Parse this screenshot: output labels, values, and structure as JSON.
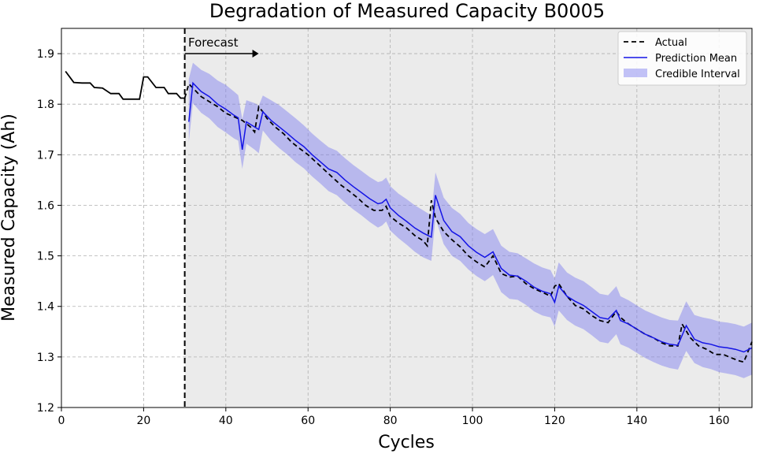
{
  "chart_data": {
    "type": "line",
    "title": "Degradation of Measured Capacity B0005",
    "xlabel": "Cycles",
    "ylabel": "Measured Capacity (Ah)",
    "xlim": [
      0,
      168
    ],
    "ylim": [
      1.2,
      1.95
    ],
    "xticks": [
      0,
      20,
      40,
      60,
      80,
      100,
      120,
      140,
      160
    ],
    "yticks": [
      1.2,
      1.3,
      1.4,
      1.5,
      1.6,
      1.7,
      1.8,
      1.9
    ],
    "grid": true,
    "legend_position": "top-right",
    "forecast_start": 30,
    "forecast_shaded_region": [
      30,
      168
    ],
    "annotation": {
      "text": "Forecast",
      "arrow_from": 30,
      "arrow_to": 48
    },
    "colors": {
      "actual": "#000000",
      "prediction": "#1414e6",
      "interval": "#7b7bf0",
      "forecast_bg": "#ebebeb"
    },
    "legend": [
      "Actual",
      "Prediction Mean",
      "Credible Interval"
    ],
    "series": [
      {
        "name": "Actual",
        "style": "dashed after forecast start, solid before",
        "points": [
          [
            1,
            1.865
          ],
          [
            3,
            1.843
          ],
          [
            5,
            1.842
          ],
          [
            7,
            1.842
          ],
          [
            8,
            1.833
          ],
          [
            10,
            1.832
          ],
          [
            12,
            1.821
          ],
          [
            14,
            1.821
          ],
          [
            15,
            1.81
          ],
          [
            17,
            1.81
          ],
          [
            19,
            1.81
          ],
          [
            20,
            1.854
          ],
          [
            21,
            1.854
          ],
          [
            23,
            1.833
          ],
          [
            25,
            1.833
          ],
          [
            26,
            1.821
          ],
          [
            28,
            1.821
          ],
          [
            29,
            1.812
          ],
          [
            30,
            1.812
          ],
          [
            31,
            1.84
          ],
          [
            32,
            1.832
          ],
          [
            34,
            1.815
          ],
          [
            36,
            1.805
          ],
          [
            38,
            1.795
          ],
          [
            40,
            1.782
          ],
          [
            42,
            1.775
          ],
          [
            44,
            1.768
          ],
          [
            46,
            1.755
          ],
          [
            47,
            1.745
          ],
          [
            48,
            1.795
          ],
          [
            49,
            1.785
          ],
          [
            50,
            1.772
          ],
          [
            52,
            1.755
          ],
          [
            54,
            1.742
          ],
          [
            56,
            1.725
          ],
          [
            58,
            1.712
          ],
          [
            60,
            1.7
          ],
          [
            62,
            1.685
          ],
          [
            64,
            1.67
          ],
          [
            66,
            1.655
          ],
          [
            68,
            1.64
          ],
          [
            70,
            1.628
          ],
          [
            72,
            1.615
          ],
          [
            74,
            1.6
          ],
          [
            76,
            1.59
          ],
          [
            78,
            1.59
          ],
          [
            79,
            1.598
          ],
          [
            80,
            1.578
          ],
          [
            82,
            1.565
          ],
          [
            84,
            1.555
          ],
          [
            86,
            1.54
          ],
          [
            88,
            1.53
          ],
          [
            89,
            1.52
          ],
          [
            90,
            1.61
          ],
          [
            91,
            1.575
          ],
          [
            93,
            1.548
          ],
          [
            95,
            1.532
          ],
          [
            97,
            1.518
          ],
          [
            99,
            1.5
          ],
          [
            101,
            1.488
          ],
          [
            103,
            1.478
          ],
          [
            105,
            1.5
          ],
          [
            107,
            1.465
          ],
          [
            109,
            1.458
          ],
          [
            111,
            1.46
          ],
          [
            113,
            1.445
          ],
          [
            115,
            1.435
          ],
          [
            117,
            1.428
          ],
          [
            119,
            1.42
          ],
          [
            120,
            1.44
          ],
          [
            121,
            1.445
          ],
          [
            123,
            1.42
          ],
          [
            125,
            1.402
          ],
          [
            127,
            1.395
          ],
          [
            129,
            1.382
          ],
          [
            131,
            1.372
          ],
          [
            133,
            1.368
          ],
          [
            135,
            1.39
          ],
          [
            136,
            1.378
          ],
          [
            138,
            1.365
          ],
          [
            140,
            1.355
          ],
          [
            142,
            1.345
          ],
          [
            144,
            1.338
          ],
          [
            146,
            1.328
          ],
          [
            148,
            1.322
          ],
          [
            150,
            1.322
          ],
          [
            151,
            1.365
          ],
          [
            153,
            1.338
          ],
          [
            155,
            1.322
          ],
          [
            157,
            1.315
          ],
          [
            159,
            1.305
          ],
          [
            161,
            1.305
          ],
          [
            163,
            1.298
          ],
          [
            165,
            1.292
          ],
          [
            166,
            1.29
          ],
          [
            168,
            1.33
          ]
        ]
      },
      {
        "name": "Prediction Mean",
        "points": [
          [
            31,
            1.765
          ],
          [
            32,
            1.842
          ],
          [
            34,
            1.825
          ],
          [
            36,
            1.815
          ],
          [
            38,
            1.8
          ],
          [
            40,
            1.79
          ],
          [
            42,
            1.778
          ],
          [
            43,
            1.773
          ],
          [
            44,
            1.71
          ],
          [
            45,
            1.765
          ],
          [
            47,
            1.755
          ],
          [
            48,
            1.75
          ],
          [
            49,
            1.785
          ],
          [
            51,
            1.768
          ],
          [
            53,
            1.755
          ],
          [
            55,
            1.742
          ],
          [
            57,
            1.728
          ],
          [
            59,
            1.716
          ],
          [
            61,
            1.7
          ],
          [
            63,
            1.686
          ],
          [
            65,
            1.672
          ],
          [
            67,
            1.665
          ],
          [
            69,
            1.65
          ],
          [
            71,
            1.637
          ],
          [
            73,
            1.625
          ],
          [
            75,
            1.613
          ],
          [
            77,
            1.603
          ],
          [
            78,
            1.605
          ],
          [
            79,
            1.612
          ],
          [
            80,
            1.595
          ],
          [
            82,
            1.58
          ],
          [
            84,
            1.568
          ],
          [
            86,
            1.555
          ],
          [
            88,
            1.545
          ],
          [
            90,
            1.537
          ],
          [
            91,
            1.62
          ],
          [
            93,
            1.57
          ],
          [
            95,
            1.548
          ],
          [
            97,
            1.538
          ],
          [
            99,
            1.52
          ],
          [
            101,
            1.507
          ],
          [
            103,
            1.497
          ],
          [
            105,
            1.508
          ],
          [
            107,
            1.475
          ],
          [
            109,
            1.462
          ],
          [
            111,
            1.46
          ],
          [
            113,
            1.45
          ],
          [
            115,
            1.438
          ],
          [
            117,
            1.43
          ],
          [
            119,
            1.425
          ],
          [
            120,
            1.408
          ],
          [
            121,
            1.44
          ],
          [
            123,
            1.42
          ],
          [
            125,
            1.41
          ],
          [
            127,
            1.402
          ],
          [
            129,
            1.39
          ],
          [
            131,
            1.378
          ],
          [
            133,
            1.375
          ],
          [
            135,
            1.392
          ],
          [
            136,
            1.372
          ],
          [
            138,
            1.365
          ],
          [
            140,
            1.355
          ],
          [
            142,
            1.345
          ],
          [
            144,
            1.338
          ],
          [
            146,
            1.33
          ],
          [
            148,
            1.325
          ],
          [
            150,
            1.323
          ],
          [
            152,
            1.362
          ],
          [
            154,
            1.335
          ],
          [
            156,
            1.328
          ],
          [
            158,
            1.325
          ],
          [
            160,
            1.32
          ],
          [
            162,
            1.318
          ],
          [
            164,
            1.315
          ],
          [
            166,
            1.31
          ],
          [
            168,
            1.318
          ]
        ]
      }
    ],
    "credible_interval": {
      "x": [
        31,
        32,
        34,
        36,
        38,
        40,
        42,
        43,
        44,
        45,
        47,
        48,
        49,
        51,
        53,
        55,
        57,
        59,
        61,
        63,
        65,
        67,
        69,
        71,
        73,
        75,
        77,
        78,
        79,
        80,
        82,
        84,
        86,
        88,
        90,
        91,
        93,
        95,
        97,
        99,
        101,
        103,
        105,
        107,
        109,
        111,
        113,
        115,
        117,
        119,
        120,
        121,
        123,
        125,
        127,
        129,
        131,
        133,
        135,
        136,
        138,
        140,
        142,
        144,
        146,
        148,
        150,
        152,
        154,
        156,
        158,
        160,
        162,
        164,
        166,
        168
      ],
      "upper": [
        1.85,
        1.882,
        1.868,
        1.86,
        1.847,
        1.838,
        1.825,
        1.818,
        1.77,
        1.808,
        1.802,
        1.797,
        1.817,
        1.808,
        1.798,
        1.785,
        1.772,
        1.758,
        1.742,
        1.728,
        1.715,
        1.708,
        1.693,
        1.68,
        1.668,
        1.656,
        1.646,
        1.648,
        1.655,
        1.638,
        1.623,
        1.612,
        1.6,
        1.59,
        1.58,
        1.665,
        1.615,
        1.595,
        1.583,
        1.565,
        1.553,
        1.543,
        1.553,
        1.52,
        1.508,
        1.505,
        1.495,
        1.485,
        1.477,
        1.472,
        1.455,
        1.487,
        1.467,
        1.457,
        1.45,
        1.438,
        1.425,
        1.422,
        1.44,
        1.42,
        1.412,
        1.402,
        1.392,
        1.385,
        1.378,
        1.373,
        1.372,
        1.41,
        1.383,
        1.378,
        1.375,
        1.37,
        1.368,
        1.365,
        1.36,
        1.368
      ],
      "lower": [
        1.725,
        1.802,
        1.783,
        1.772,
        1.755,
        1.744,
        1.732,
        1.728,
        1.672,
        1.722,
        1.71,
        1.703,
        1.748,
        1.728,
        1.713,
        1.7,
        1.685,
        1.673,
        1.657,
        1.643,
        1.628,
        1.62,
        1.605,
        1.592,
        1.58,
        1.567,
        1.556,
        1.56,
        1.568,
        1.55,
        1.535,
        1.522,
        1.508,
        1.497,
        1.49,
        1.575,
        1.523,
        1.5,
        1.49,
        1.473,
        1.46,
        1.45,
        1.462,
        1.428,
        1.415,
        1.413,
        1.403,
        1.39,
        1.382,
        1.378,
        1.36,
        1.392,
        1.373,
        1.362,
        1.355,
        1.343,
        1.33,
        1.327,
        1.345,
        1.325,
        1.318,
        1.308,
        1.298,
        1.29,
        1.283,
        1.278,
        1.275,
        1.312,
        1.288,
        1.28,
        1.276,
        1.27,
        1.267,
        1.264,
        1.258,
        1.265
      ]
    }
  }
}
